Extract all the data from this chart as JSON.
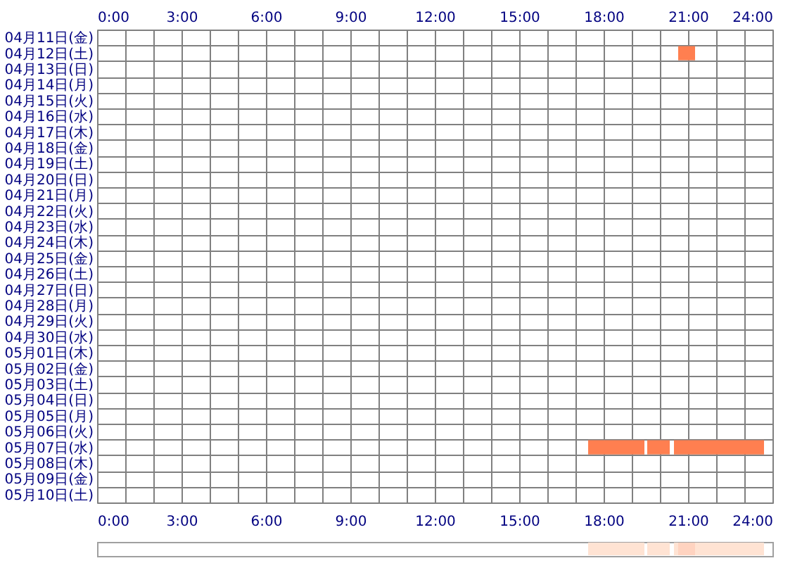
{
  "chart_data": [
    {
      "type": "bar",
      "orientation": "horizontal",
      "grid": true,
      "legend": false,
      "categories": [
        "04月11日(金)",
        "04月12日(土)",
        "04月13日(日)",
        "04月14日(月)",
        "04月15日(火)",
        "04月16日(水)",
        "04月17日(木)",
        "04月18日(金)",
        "04月19日(土)",
        "04月20日(日)",
        "04月21日(月)",
        "04月22日(火)",
        "04月23日(水)",
        "04月24日(木)",
        "04月25日(金)",
        "04月26日(土)",
        "04月27日(日)",
        "04月28日(月)",
        "04月29日(火)",
        "04月30日(水)",
        "05月01日(木)",
        "05月02日(金)",
        "05月03日(土)",
        "05月04日(日)",
        "05月05日(月)",
        "05月06日(火)",
        "05月07日(水)",
        "05月08日(木)",
        "05月09日(金)",
        "05月10日(土)"
      ],
      "series": [
        {
          "color": "#ff7f50",
          "values": [
            null,
            0.6,
            null,
            null,
            null,
            null,
            null,
            null,
            null,
            null,
            null,
            null,
            null,
            null,
            null,
            null,
            null,
            null,
            null,
            null,
            null,
            null,
            null,
            null,
            null,
            null,
            2.0,
            null,
            null,
            null
          ],
          "base": [
            null,
            20.65,
            null,
            null,
            null,
            null,
            null,
            null,
            null,
            null,
            null,
            null,
            null,
            null,
            null,
            null,
            null,
            null,
            null,
            null,
            null,
            null,
            null,
            null,
            null,
            null,
            17.45,
            null,
            null,
            null
          ]
        },
        {
          "color": "#ff7f50",
          "values": [
            null,
            null,
            null,
            null,
            null,
            null,
            null,
            null,
            null,
            null,
            null,
            null,
            null,
            null,
            null,
            null,
            null,
            null,
            null,
            null,
            null,
            null,
            null,
            null,
            null,
            null,
            0.8,
            null,
            null,
            null
          ],
          "base": [
            null,
            null,
            null,
            null,
            null,
            null,
            null,
            null,
            null,
            null,
            null,
            null,
            null,
            null,
            null,
            null,
            null,
            null,
            null,
            null,
            null,
            null,
            null,
            null,
            null,
            null,
            19.55,
            null,
            null,
            null
          ]
        },
        {
          "color": "#ff7f50",
          "values": [
            null,
            null,
            null,
            null,
            null,
            null,
            null,
            null,
            null,
            null,
            null,
            null,
            null,
            null,
            null,
            null,
            null,
            null,
            null,
            null,
            null,
            null,
            null,
            null,
            null,
            null,
            3.2,
            null,
            null,
            null
          ],
          "base": [
            null,
            null,
            null,
            null,
            null,
            null,
            null,
            null,
            null,
            null,
            null,
            null,
            null,
            null,
            null,
            null,
            null,
            null,
            null,
            null,
            null,
            null,
            null,
            null,
            null,
            null,
            20.5,
            null,
            null,
            null
          ]
        }
      ],
      "xlim": [
        0,
        24
      ],
      "xticks": [
        {
          "value": 0,
          "label": "0:00"
        },
        {
          "value": 1,
          "label": null
        },
        {
          "value": 2,
          "label": null
        },
        {
          "value": 3,
          "label": "3:00"
        },
        {
          "value": 4,
          "label": null
        },
        {
          "value": 5,
          "label": null
        },
        {
          "value": 6,
          "label": "6:00"
        },
        {
          "value": 7,
          "label": null
        },
        {
          "value": 8,
          "label": null
        },
        {
          "value": 9,
          "label": "9:00"
        },
        {
          "value": 10,
          "label": null
        },
        {
          "value": 11,
          "label": null
        },
        {
          "value": 12,
          "label": "12:00"
        },
        {
          "value": 13,
          "label": null
        },
        {
          "value": 14,
          "label": null
        },
        {
          "value": 15,
          "label": "15:00"
        },
        {
          "value": 16,
          "label": null
        },
        {
          "value": 17,
          "label": null
        },
        {
          "value": 18,
          "label": "18:00"
        },
        {
          "value": 19,
          "label": null
        },
        {
          "value": 20,
          "label": null
        },
        {
          "value": 21,
          "label": "21:00"
        },
        {
          "value": 22,
          "label": null
        },
        {
          "value": 23,
          "label": null
        },
        {
          "value": 24,
          "label": "24:00"
        }
      ],
      "x2lim": [
        0,
        24
      ],
      "x2ticks": [
        {
          "value": 0,
          "label": "0:00"
        },
        {
          "value": 3,
          "label": "3:00"
        },
        {
          "value": 6,
          "label": "6:00"
        },
        {
          "value": 9,
          "label": "9:00"
        },
        {
          "value": 12,
          "label": "12:00"
        },
        {
          "value": 15,
          "label": "15:00"
        },
        {
          "value": 18,
          "label": "18:00"
        },
        {
          "value": 21,
          "label": "21:00"
        },
        {
          "value": 24,
          "label": "24:00"
        }
      ]
    },
    {
      "type": "bar",
      "orientation": "horizontal",
      "grid": false,
      "legend": false,
      "tick_labels": false,
      "categories": [
        null
      ],
      "series": [
        {
          "color": "#ffe3d3",
          "values": [
            2.0
          ],
          "base": [
            17.45
          ]
        },
        {
          "color": "#ffe3d3",
          "values": [
            0.8
          ],
          "base": [
            19.55
          ]
        },
        {
          "color": "#ffe3d3",
          "values": [
            3.2
          ],
          "base": [
            20.5
          ]
        },
        {
          "color": "#ffd3c0",
          "values": [
            0.6
          ],
          "base": [
            20.65
          ]
        }
      ],
      "xlim": [
        0,
        24
      ]
    }
  ]
}
